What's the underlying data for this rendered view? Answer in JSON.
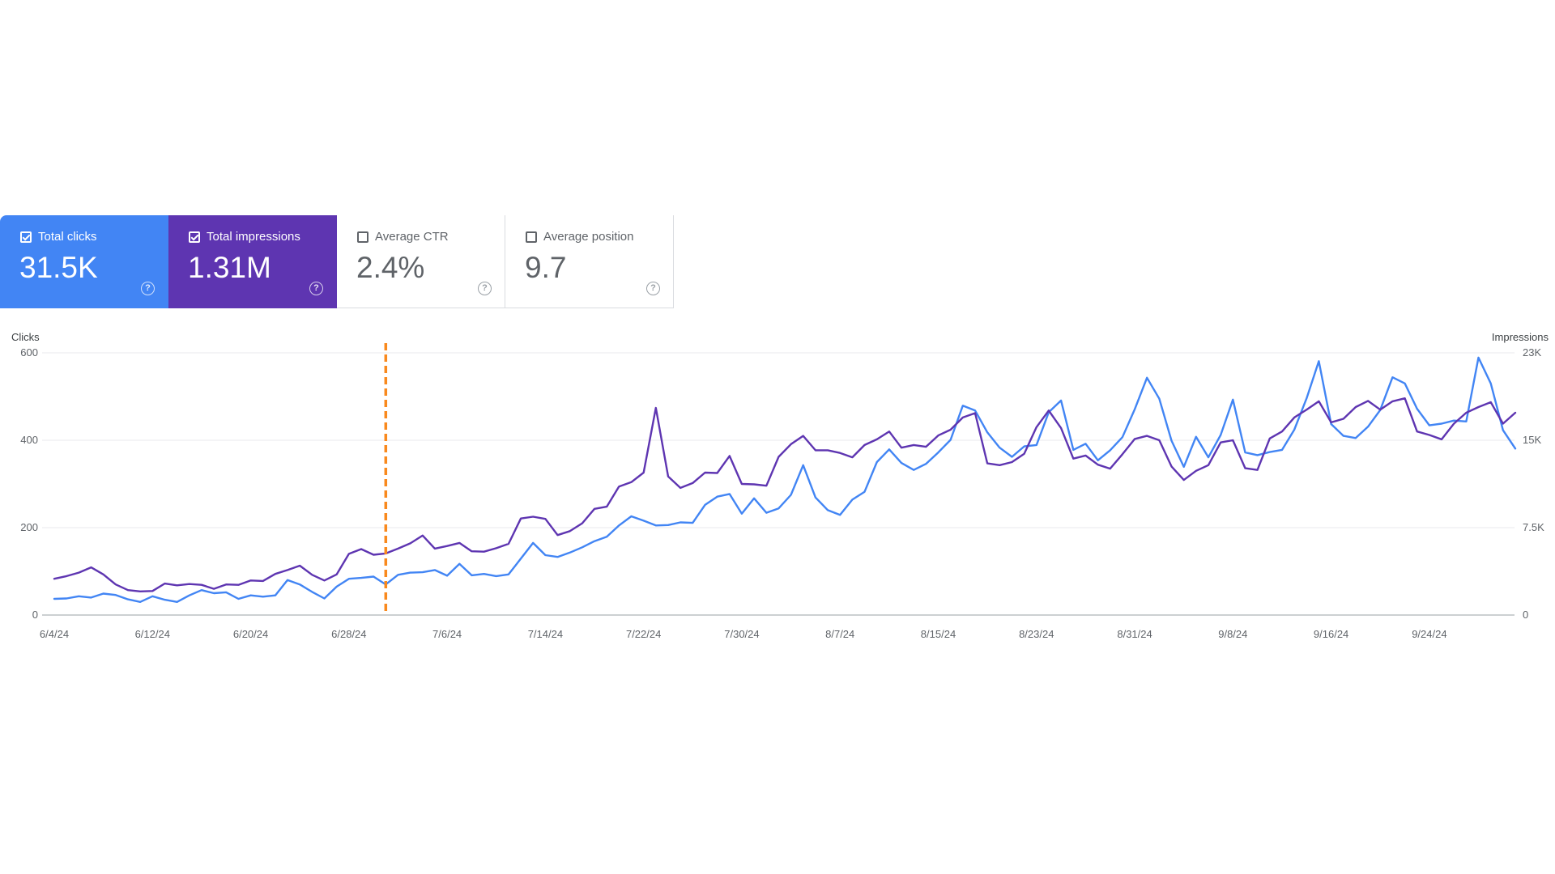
{
  "cards": [
    {
      "label": "Total clicks",
      "value": "31.5K",
      "checked": true,
      "color": "#4285f4"
    },
    {
      "label": "Total impressions",
      "value": "1.31M",
      "checked": true,
      "color": "#5e35b1"
    },
    {
      "label": "Average CTR",
      "value": "2.4%",
      "checked": false,
      "color": "#ffffff"
    },
    {
      "label": "Average position",
      "value": "9.7",
      "checked": false,
      "color": "#ffffff"
    }
  ],
  "help_icon": "?",
  "chart_data": {
    "type": "line",
    "left_axis": {
      "title": "Clicks",
      "ticks": [
        "0",
        "200",
        "400",
        "600"
      ],
      "ylim": [
        0,
        600
      ]
    },
    "right_axis": {
      "title": "Impressions",
      "ticks": [
        "0",
        "7.5K",
        "15K",
        "23K"
      ],
      "ylim": [
        0,
        22500
      ]
    },
    "x_ticks": [
      {
        "label": "6/4/24",
        "index": 0
      },
      {
        "label": "6/12/24",
        "index": 8
      },
      {
        "label": "6/20/24",
        "index": 16
      },
      {
        "label": "6/28/24",
        "index": 24
      },
      {
        "label": "7/6/24",
        "index": 32
      },
      {
        "label": "7/14/24",
        "index": 40
      },
      {
        "label": "7/22/24",
        "index": 48
      },
      {
        "label": "7/30/24",
        "index": 56
      },
      {
        "label": "8/7/24",
        "index": 64
      },
      {
        "label": "8/15/24",
        "index": 72
      },
      {
        "label": "8/23/24",
        "index": 80
      },
      {
        "label": "8/31/24",
        "index": 88
      },
      {
        "label": "9/8/24",
        "index": 96
      },
      {
        "label": "9/16/24",
        "index": 104
      },
      {
        "label": "9/24/24",
        "index": 112
      }
    ],
    "marker_index": 27,
    "marker_color": "#f9891d",
    "series": [
      {
        "name": "Total clicks",
        "axis": "left",
        "color": "#4285f4",
        "values": [
          37,
          38,
          43,
          40,
          49,
          46,
          36,
          30,
          43,
          35,
          30,
          45,
          57,
          50,
          52,
          37,
          45,
          42,
          45,
          80,
          70,
          53,
          38,
          65,
          83,
          85,
          88,
          70,
          92,
          97,
          98,
          103,
          90,
          117,
          91,
          94,
          89,
          93,
          129,
          165,
          137,
          133,
          143,
          155,
          169,
          179,
          205,
          226,
          216,
          205,
          206,
          212,
          211,
          252,
          271,
          277,
          232,
          267,
          234,
          244,
          275,
          343,
          269,
          240,
          229,
          264,
          282,
          350,
          379,
          348,
          332,
          346,
          372,
          401,
          479,
          468,
          418,
          383,
          362,
          386,
          389,
          464,
          491,
          378,
          392,
          354,
          377,
          407,
          471,
          543,
          495,
          399,
          339,
          408,
          361,
          412,
          493,
          372,
          366,
          373,
          378,
          424,
          496,
          581,
          437,
          410,
          405,
          431,
          469,
          544,
          530,
          472,
          434,
          438,
          445,
          443,
          589,
          530,
          423,
          381
        ]
      },
      {
        "name": "Total impressions",
        "axis": "left",
        "color": "#5e35b1",
        "values": [
          83,
          89,
          97,
          109,
          93,
          70,
          57,
          54,
          55,
          72,
          68,
          71,
          69,
          60,
          70,
          69,
          79,
          78,
          94,
          103,
          113,
          92,
          79,
          93,
          140,
          151,
          138,
          141,
          152,
          164,
          182,
          152,
          158,
          165,
          146,
          145,
          153,
          163,
          221,
          225,
          220,
          183,
          192,
          210,
          243,
          248,
          294,
          304,
          326,
          474,
          317,
          291,
          302,
          326,
          325,
          364,
          300,
          299,
          296,
          362,
          391,
          410,
          377,
          377,
          371,
          361,
          389,
          402,
          420,
          383,
          389,
          385,
          411,
          424,
          452,
          462,
          347,
          343,
          350,
          369,
          430,
          468,
          428,
          358,
          365,
          344,
          335,
          368,
          403,
          410,
          400,
          340,
          309,
          330,
          343,
          395,
          400,
          336,
          332,
          404,
          420,
          452,
          470,
          489,
          441,
          449,
          476,
          490,
          470,
          489,
          496,
          420,
          412,
          402,
          438,
          463,
          476,
          487,
          438,
          463
        ]
      }
    ]
  }
}
